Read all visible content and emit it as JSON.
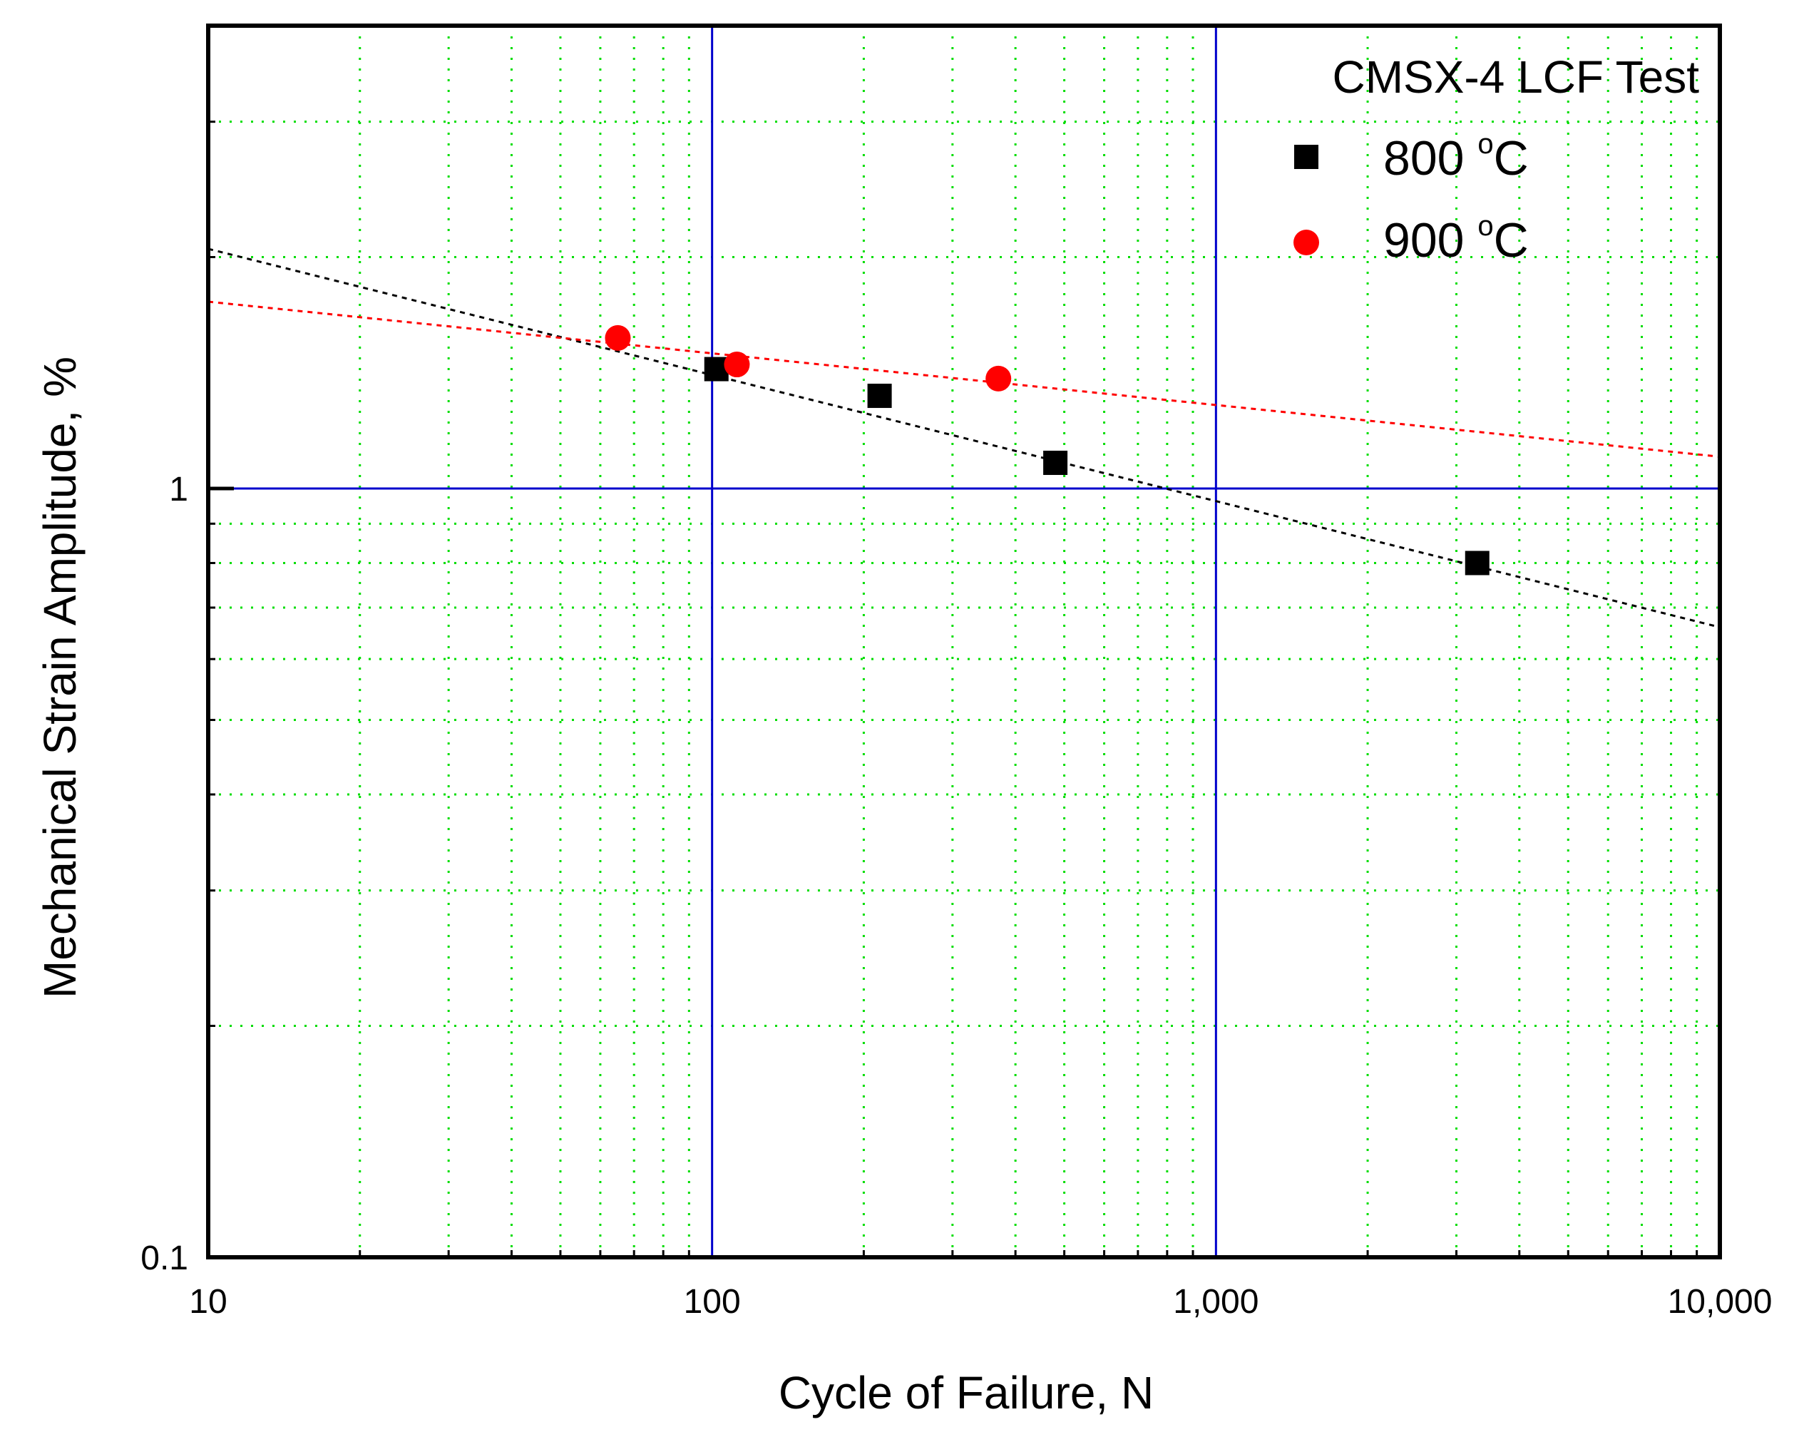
{
  "chart_data": {
    "type": "scatter",
    "title": "",
    "xlabel": "Cycle of Failure, N",
    "ylabel": "Mechanical Strain Amplitude, %",
    "xscale": "log",
    "yscale": "log",
    "xlim": [
      10,
      10000
    ],
    "ylim": [
      0.1,
      4
    ],
    "xticks": [
      {
        "value": 10,
        "label": "10"
      },
      {
        "value": 100,
        "label": "100"
      },
      {
        "value": 1000,
        "label": "1,000"
      },
      {
        "value": 10000,
        "label": "10,000"
      }
    ],
    "yticks": [
      {
        "value": 0.1,
        "label": "0.1"
      },
      {
        "value": 1,
        "label": "1"
      }
    ],
    "grid": {
      "major": true,
      "minor": true,
      "major_color": "#0000cc",
      "minor_color": "#00dd00"
    },
    "legend": {
      "title": "CMSX-4 LCF Test",
      "position": "top-right"
    },
    "series": [
      {
        "name": "800",
        "unit_sup": "o",
        "unit": "C",
        "marker": "square",
        "color": "#000000",
        "x": [
          102,
          215,
          480,
          3300
        ],
        "y": [
          1.43,
          1.32,
          1.08,
          0.8
        ],
        "trend": {
          "color": "#000000",
          "x": [
            10,
            10000
          ],
          "y": [
            2.05,
            0.66
          ]
        }
      },
      {
        "name": "900",
        "unit_sup": "o",
        "unit": "C",
        "marker": "circle",
        "color": "#ff0000",
        "x": [
          65,
          112,
          370
        ],
        "y": [
          1.57,
          1.45,
          1.39
        ],
        "trend": {
          "color": "#ff0000",
          "x": [
            10,
            10000
          ],
          "y": [
            1.75,
            1.1
          ]
        }
      }
    ]
  }
}
